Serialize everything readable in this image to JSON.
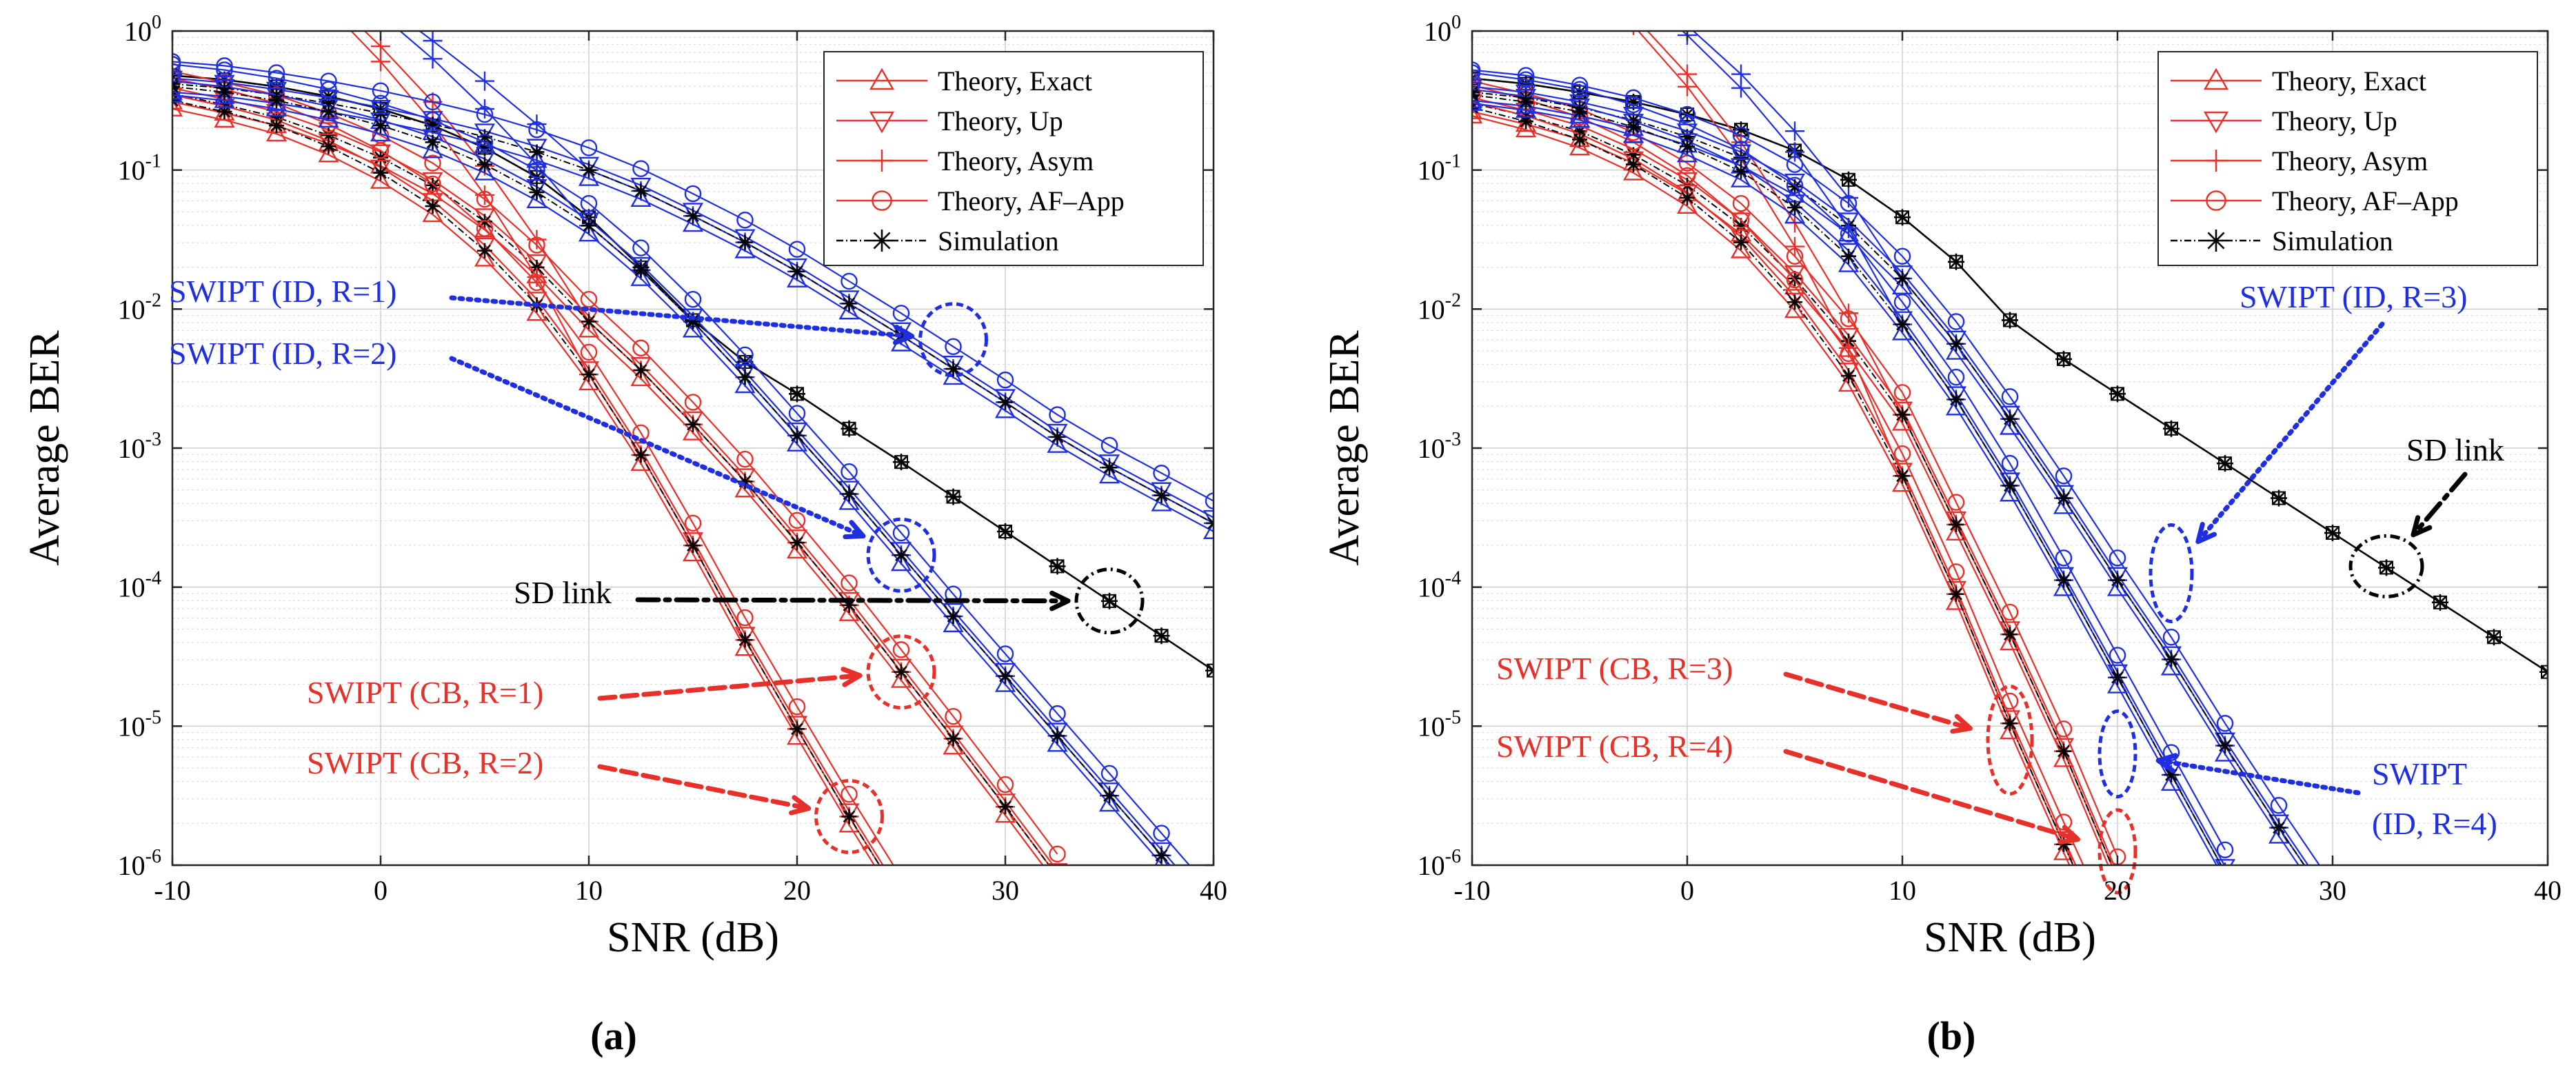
{
  "figure": {
    "panels": [
      {
        "label": "(a)",
        "id": "a"
      },
      {
        "label": "(b)",
        "id": "b"
      }
    ]
  },
  "legend_entries": [
    {
      "label": "Theory, Exact",
      "marker": "triangle-up",
      "color": "#e8302a",
      "style": "solid"
    },
    {
      "label": "Theory, Up",
      "marker": "triangle-down",
      "color": "#e8302a",
      "style": "solid"
    },
    {
      "label": "Theory, Asym",
      "marker": "plus",
      "color": "#e8302a",
      "style": "solid"
    },
    {
      "label": "Theory, AF–App",
      "marker": "circle",
      "color": "#e8302a",
      "style": "solid"
    },
    {
      "label": "Simulation",
      "marker": "asterisk",
      "color": "#000000",
      "style": "dashdot"
    }
  ],
  "colors": {
    "cb": "#e8302a",
    "id": "#1f2fe0",
    "sd": "#000000",
    "sim": "#000000"
  },
  "chart_data": [
    {
      "type": "line",
      "panel": "a",
      "xlabel": "SNR (dB)",
      "ylabel": "Average BER",
      "xlim": [
        -10,
        40
      ],
      "ylim_log10": [
        -6,
        0
      ],
      "x_ticks": [
        -10,
        0,
        10,
        20,
        30,
        40
      ],
      "y_ticks": [
        "10^0",
        "10^-1",
        "10^-2",
        "10^-3",
        "10^-4",
        "10^-5",
        "10^-6"
      ],
      "grid": true,
      "legend_position": "top-right",
      "x": [
        -10,
        -7.5,
        -5,
        -2.5,
        0,
        2.5,
        5,
        7.5,
        10,
        12.5,
        15,
        17.5,
        20,
        22.5,
        25,
        27.5,
        30,
        32.5,
        35,
        37.5,
        40
      ],
      "series": [
        {
          "name": "SD link",
          "group": "sd",
          "log10_ber": [
            -0.32,
            -0.35,
            -0.4,
            -0.47,
            -0.56,
            -0.68,
            -0.84,
            -1.05,
            -1.34,
            -1.7,
            -2.08,
            -2.38,
            -2.61,
            -2.86,
            -3.1,
            -3.35,
            -3.6,
            -3.85,
            -4.1,
            -4.35,
            -4.6
          ]
        },
        {
          "name": "SWIPT (CB, R=1)",
          "group": "cb",
          "log10_ber": [
            -0.45,
            -0.53,
            -0.62,
            -0.75,
            -0.91,
            -1.11,
            -1.37,
            -1.7,
            -2.09,
            -2.44,
            -2.83,
            -3.24,
            -3.68,
            -4.13,
            -4.61,
            -5.09,
            -5.58,
            -6.08
          ]
        },
        {
          "name": "SWIPT (CB, R=2)",
          "group": "cb",
          "log10_ber": [
            -0.5,
            -0.58,
            -0.68,
            -0.83,
            -1.02,
            -1.26,
            -1.58,
            -1.97,
            -2.47,
            -3.05,
            -3.7,
            -4.38,
            -5.02,
            -5.65,
            -6.25
          ]
        },
        {
          "name": "SWIPT (ID, R=1)",
          "group": "id",
          "log10_ber": [
            -0.38,
            -0.41,
            -0.46,
            -0.52,
            -0.59,
            -0.67,
            -0.76,
            -0.87,
            -1.0,
            -1.15,
            -1.33,
            -1.52,
            -1.73,
            -1.96,
            -2.19,
            -2.43,
            -2.67,
            -2.92,
            -3.14,
            -3.34,
            -3.54
          ]
        },
        {
          "name": "SWIPT (ID, R=2)",
          "group": "id",
          "log10_ber": [
            -0.4,
            -0.44,
            -0.5,
            -0.58,
            -0.68,
            -0.8,
            -0.96,
            -1.16,
            -1.4,
            -1.72,
            -2.09,
            -2.49,
            -2.91,
            -3.33,
            -3.77,
            -4.21,
            -4.64,
            -5.07,
            -5.5,
            -5.93,
            -6.36
          ]
        }
      ],
      "annotations": [
        {
          "text": "SWIPT (ID, R=1)",
          "color": "#1f2fe0",
          "points_to": {
            "x": 27.5,
            "log10_ber": -2.22
          }
        },
        {
          "text": "SWIPT (ID, R=2)",
          "color": "#1f2fe0",
          "points_to": {
            "x": 25,
            "log10_ber": -3.75
          }
        },
        {
          "text": "SD link",
          "color": "#000000",
          "points_to": {
            "x": 35,
            "log10_ber": -4.1
          }
        },
        {
          "text": "SWIPT (CB, R=1)",
          "color": "#e8302a",
          "points_to": {
            "x": 25,
            "log10_ber": -4.61
          }
        },
        {
          "text": "SWIPT (CB, R=2)",
          "color": "#e8302a",
          "points_to": {
            "x": 22.5,
            "log10_ber": -5.65
          }
        }
      ]
    },
    {
      "type": "line",
      "panel": "b",
      "xlabel": "SNR (dB)",
      "ylabel": "Average BER",
      "xlim": [
        -10,
        40
      ],
      "ylim_log10": [
        -6,
        0
      ],
      "x_ticks": [
        -10,
        0,
        10,
        20,
        30,
        40
      ],
      "y_ticks": [
        "10^0",
        "10^-1",
        "10^-2",
        "10^-3",
        "10^-4",
        "10^-5",
        "10^-6"
      ],
      "grid": true,
      "legend_position": "top-right",
      "x": [
        -10,
        -7.5,
        -5,
        -2.5,
        0,
        2.5,
        5,
        7.5,
        10,
        12.5,
        15,
        17.5,
        20,
        22.5,
        25,
        27.5,
        30,
        32.5,
        35,
        37.5,
        40
      ],
      "series": [
        {
          "name": "SD link",
          "group": "sd",
          "log10_ber": [
            -0.34,
            -0.38,
            -0.44,
            -0.51,
            -0.6,
            -0.71,
            -0.86,
            -1.07,
            -1.34,
            -1.66,
            -2.08,
            -2.36,
            -2.61,
            -2.86,
            -3.11,
            -3.36,
            -3.61,
            -3.86,
            -4.11,
            -4.36,
            -4.61
          ]
        },
        {
          "name": "SWIPT (CB, R=3)",
          "group": "cb",
          "log10_ber": [
            -0.52,
            -0.61,
            -0.72,
            -0.89,
            -1.11,
            -1.4,
            -1.78,
            -2.23,
            -2.76,
            -3.55,
            -4.34,
            -5.18,
            -6.1
          ]
        },
        {
          "name": "SWIPT (CB, R=4)",
          "group": "cb",
          "log10_ber": [
            -0.55,
            -0.65,
            -0.78,
            -0.96,
            -1.2,
            -1.52,
            -1.95,
            -2.48,
            -3.2,
            -4.05,
            -4.98,
            -5.85,
            -6.7
          ]
        },
        {
          "name": "SWIPT (ID, R=3)",
          "group": "id",
          "log10_ber": [
            -0.44,
            -0.48,
            -0.55,
            -0.64,
            -0.76,
            -0.91,
            -1.12,
            -1.4,
            -1.78,
            -2.25,
            -2.79,
            -3.36,
            -3.95,
            -4.52,
            -5.14,
            -5.73,
            -6.3
          ]
        },
        {
          "name": "SWIPT (ID, R=4)",
          "group": "id",
          "log10_ber": [
            -0.46,
            -0.51,
            -0.58,
            -0.69,
            -0.83,
            -1.01,
            -1.27,
            -1.62,
            -2.11,
            -2.65,
            -3.27,
            -3.95,
            -4.65,
            -5.35,
            -6.05
          ]
        }
      ],
      "annotations": [
        {
          "text": "SWIPT (ID, R=3)",
          "color": "#1f2fe0",
          "points_to": {
            "x": 22.5,
            "log10_ber": -3.9
          }
        },
        {
          "text": "SD link",
          "color": "#000000",
          "points_to": {
            "x": 32.5,
            "log10_ber": -3.85
          }
        },
        {
          "text": "SWIPT (CB, R=3)",
          "color": "#e8302a",
          "points_to": {
            "x": 15,
            "log10_ber": -5.1
          }
        },
        {
          "text": "SWIPT (CB, R=4)",
          "color": "#e8302a",
          "points_to": {
            "x": 20,
            "log10_ber": -5.9
          }
        },
        {
          "text": "SWIPT",
          "color": "#1f2fe0",
          "points_to": {
            "x": 20,
            "log10_ber": -5.2
          }
        },
        {
          "text": "(ID, R=4)",
          "color": "#1f2fe0",
          "points_to": null
        }
      ]
    }
  ]
}
